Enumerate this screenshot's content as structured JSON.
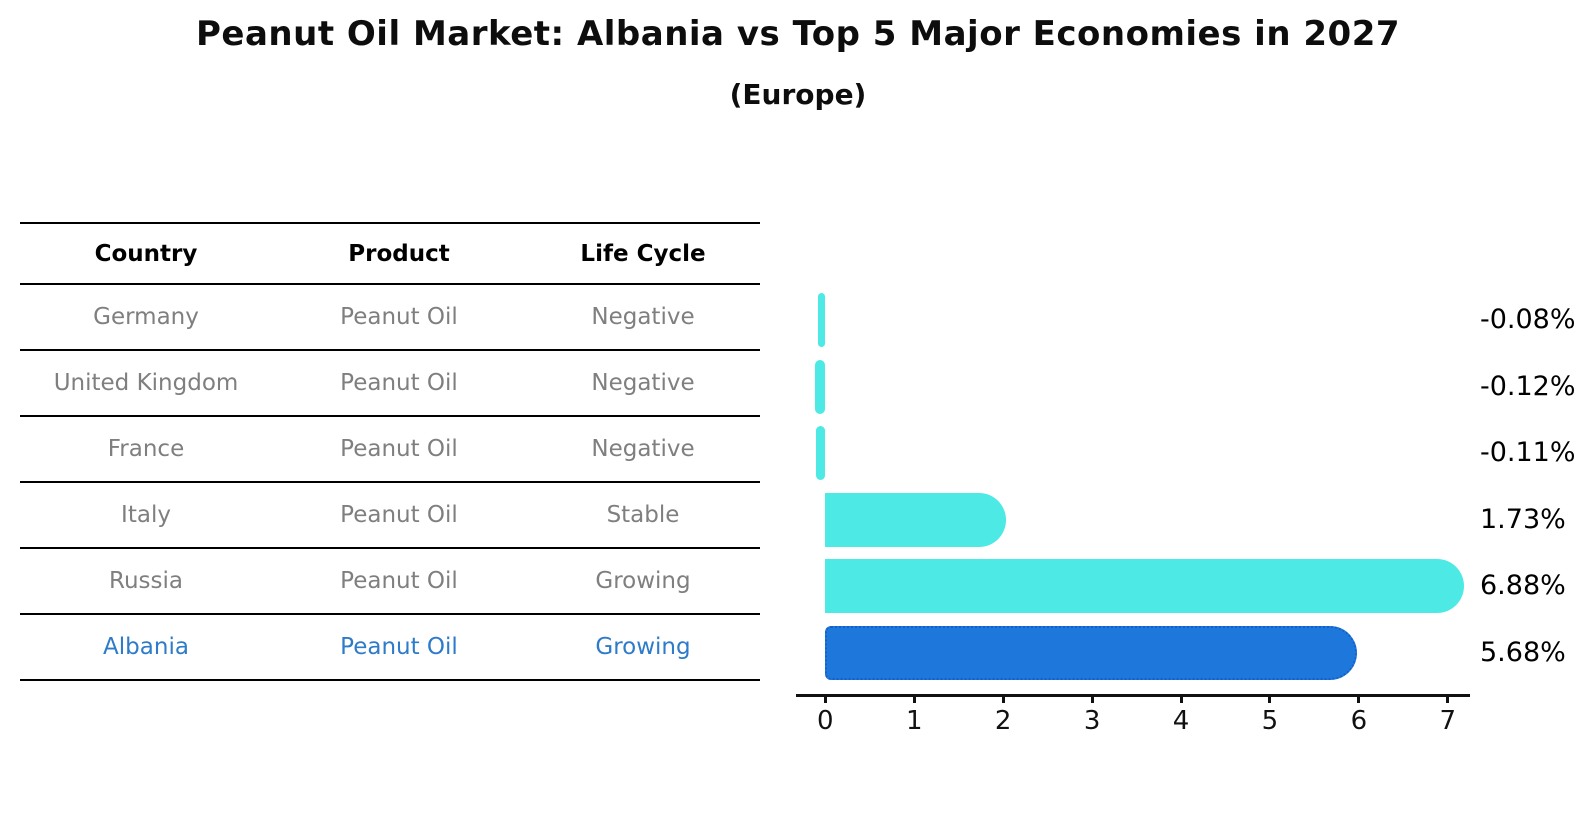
{
  "header": {
    "title": "Peanut Oil Market: Albania vs Top 5 Major Economies in 2027",
    "subtitle": "(Europe)"
  },
  "table": {
    "headers": [
      "Country",
      "Product",
      "Life Cycle"
    ],
    "rows": [
      {
        "country": "Germany",
        "product": "Peanut Oil",
        "life_cycle": "Negative",
        "highlight": false
      },
      {
        "country": "United Kingdom",
        "product": "Peanut Oil",
        "life_cycle": "Negative",
        "highlight": false
      },
      {
        "country": "France",
        "product": "Peanut Oil",
        "life_cycle": "Negative",
        "highlight": false
      },
      {
        "country": "Italy",
        "product": "Peanut Oil",
        "life_cycle": "Stable",
        "highlight": false
      },
      {
        "country": "Russia",
        "product": "Peanut Oil",
        "life_cycle": "Growing",
        "highlight": false
      },
      {
        "country": "Albania",
        "product": "Peanut Oil",
        "life_cycle": "Growing",
        "highlight": true
      }
    ]
  },
  "chart_data": {
    "type": "bar",
    "orientation": "horizontal",
    "title": "Peanut Oil Market: Albania vs Top 5 Major Economies in 2027 (Europe)",
    "categories": [
      "Germany",
      "United Kingdom",
      "France",
      "Italy",
      "Russia",
      "Albania"
    ],
    "values": [
      -0.08,
      -0.12,
      -0.11,
      1.73,
      6.88,
      5.68
    ],
    "value_labels": [
      "-0.08%",
      "-0.12%",
      "-0.11%",
      "1.73%",
      "6.88%",
      "5.68%"
    ],
    "x_ticks": [
      0,
      1,
      2,
      3,
      4,
      5,
      6,
      7
    ],
    "xlim": [
      -0.33,
      7.25
    ],
    "grid": false,
    "legend": "none",
    "bar_color": "#4DE9E5",
    "highlight_index": 5,
    "highlight_color": "#1E78DC",
    "highlight_border_color": "#1560C8",
    "value_label_color": "#000000"
  },
  "colors": {
    "row_text": "#7f7f7f",
    "highlight_text": "#2E7BC9",
    "header_text": "#000000",
    "axis": "#111111"
  }
}
